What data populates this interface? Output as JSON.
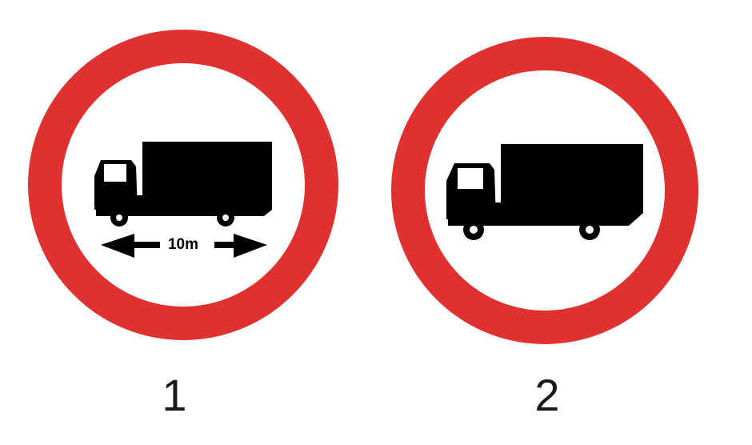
{
  "signs": [
    {
      "number": "1",
      "length_label": "10m",
      "pictogram": "truck-icon",
      "ring_color": "#e03131"
    },
    {
      "number": "2",
      "pictogram": "truck-icon",
      "ring_color": "#e03131"
    }
  ],
  "colors": {
    "ring": "#e03131",
    "pictogram": "#000000",
    "background": "#ffffff"
  }
}
